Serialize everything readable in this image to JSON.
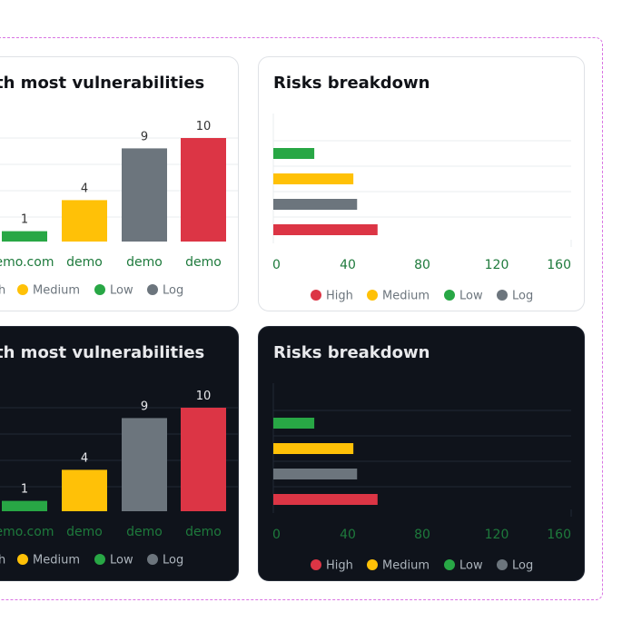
{
  "colors": {
    "High": "#dc3545",
    "Medium": "#ffc107",
    "Low": "#28a745",
    "Log": "#6c757d",
    "axis_text": "#1e7a3c",
    "label_light": "#333333",
    "label_dark": "#e8e9ec",
    "legend_light": "#6c757d",
    "legend_dark": "#adb5bd"
  },
  "cards": {
    "vuln_title": "th most vulnerabilities",
    "breakdown_title": "Risks breakdown"
  },
  "chart_data": [
    {
      "type": "bar",
      "theme": "light",
      "categories": [
        "emo.com",
        "demo",
        "demo",
        "demo"
      ],
      "values": [
        1,
        4,
        9,
        10
      ],
      "bar_colors": [
        "Low",
        "Medium",
        "Log",
        "High"
      ],
      "value_labels": [
        "1",
        "4",
        "9",
        "10"
      ],
      "legend": [
        "h",
        "Medium",
        "Low",
        "Log"
      ],
      "legend_colors": [
        "High",
        "Medium",
        "Low",
        "Log"
      ]
    },
    {
      "type": "bar",
      "orientation": "horizontal",
      "theme": "light",
      "categories": [
        "Low",
        "Medium",
        "Log",
        "High"
      ],
      "values": [
        22,
        43,
        45,
        56
      ],
      "xlim": [
        0,
        160
      ],
      "xticks": [
        "0",
        "40",
        "80",
        "120",
        "160"
      ],
      "legend": [
        "High",
        "Medium",
        "Low",
        "Log"
      ],
      "legend_colors": [
        "High",
        "Medium",
        "Low",
        "Log"
      ],
      "grid": true
    },
    {
      "type": "bar",
      "theme": "dark",
      "categories": [
        "emo.com",
        "demo",
        "demo",
        "demo"
      ],
      "values": [
        1,
        4,
        9,
        10
      ],
      "bar_colors": [
        "Low",
        "Medium",
        "Log",
        "High"
      ],
      "value_labels": [
        "1",
        "4",
        "9",
        "10"
      ],
      "legend": [
        "h",
        "Medium",
        "Low",
        "Log"
      ],
      "legend_colors": [
        "High",
        "Medium",
        "Low",
        "Log"
      ]
    },
    {
      "type": "bar",
      "orientation": "horizontal",
      "theme": "dark",
      "categories": [
        "Low",
        "Medium",
        "Log",
        "High"
      ],
      "values": [
        22,
        43,
        45,
        56
      ],
      "xlim": [
        0,
        160
      ],
      "xticks": [
        "0",
        "40",
        "80",
        "120",
        "160"
      ],
      "legend": [
        "High",
        "Medium",
        "Low",
        "Log"
      ],
      "legend_colors": [
        "High",
        "Medium",
        "Low",
        "Log"
      ],
      "grid": true
    }
  ]
}
